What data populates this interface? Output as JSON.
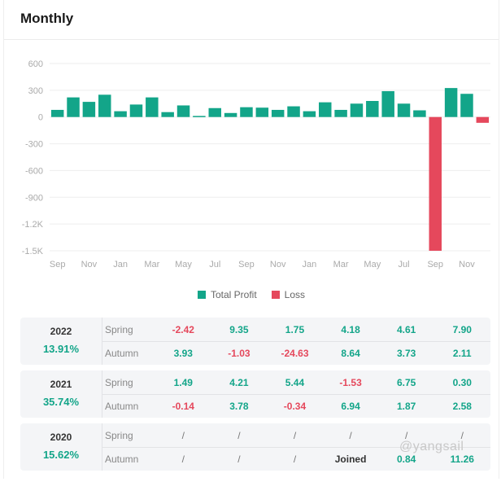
{
  "title": "Monthly",
  "colors": {
    "profit": "#13a589",
    "loss": "#e5485c",
    "grid": "#eeeeee",
    "axis_text": "#aaaaaa"
  },
  "chart_data": {
    "type": "bar",
    "y_ticks": [
      "600",
      "300",
      "0",
      "-300",
      "-600",
      "-900",
      "-1.2K",
      "-1.5K"
    ],
    "y_tick_values": [
      600,
      300,
      0,
      -300,
      -600,
      -900,
      -1200,
      -1500
    ],
    "ylim": [
      -1500,
      600
    ],
    "x_tick_labels": [
      "Sep",
      "Nov",
      "Jan",
      "Mar",
      "May",
      "Jul",
      "Sep",
      "Nov",
      "Jan",
      "Mar",
      "May",
      "Jul",
      "Sep",
      "Nov"
    ],
    "series": [
      {
        "name": "Total Profit",
        "color": "#13a589",
        "values": [
          80,
          220,
          170,
          250,
          65,
          140,
          220,
          55,
          130,
          12,
          100,
          45,
          110,
          105,
          80,
          120,
          65,
          165,
          80,
          150,
          180,
          290,
          150,
          75,
          0,
          325,
          260,
          0
        ]
      },
      {
        "name": "Loss",
        "color": "#e5485c",
        "values": [
          0,
          0,
          0,
          0,
          0,
          0,
          0,
          0,
          0,
          0,
          0,
          0,
          0,
          0,
          0,
          0,
          0,
          0,
          0,
          0,
          0,
          0,
          0,
          0,
          -1500,
          0,
          0,
          -65
        ]
      }
    ],
    "legend": [
      "Total Profit",
      "Loss"
    ],
    "legend_position": "bottom"
  },
  "table": [
    {
      "year": "2022",
      "total": "13.91%",
      "rows": [
        {
          "season": "Spring",
          "values": [
            "-2.42",
            "9.35",
            "1.75",
            "4.18",
            "4.61",
            "7.90"
          ]
        },
        {
          "season": "Autumn",
          "values": [
            "3.93",
            "-1.03",
            "-24.63",
            "8.64",
            "3.73",
            "2.11"
          ]
        }
      ]
    },
    {
      "year": "2021",
      "total": "35.74%",
      "rows": [
        {
          "season": "Spring",
          "values": [
            "1.49",
            "4.21",
            "5.44",
            "-1.53",
            "6.75",
            "0.30"
          ]
        },
        {
          "season": "Autumn",
          "values": [
            "-0.14",
            "3.78",
            "-0.34",
            "6.94",
            "1.87",
            "2.58"
          ]
        }
      ]
    },
    {
      "year": "2020",
      "total": "15.62%",
      "rows": [
        {
          "season": "Spring",
          "values": [
            "/",
            "/",
            "/",
            "/",
            "/",
            "/"
          ]
        },
        {
          "season": "Autumn",
          "values": [
            "/",
            "/",
            "/",
            "Joined",
            "0.84",
            "11.26"
          ]
        }
      ]
    }
  ],
  "watermark": "@yangsail"
}
